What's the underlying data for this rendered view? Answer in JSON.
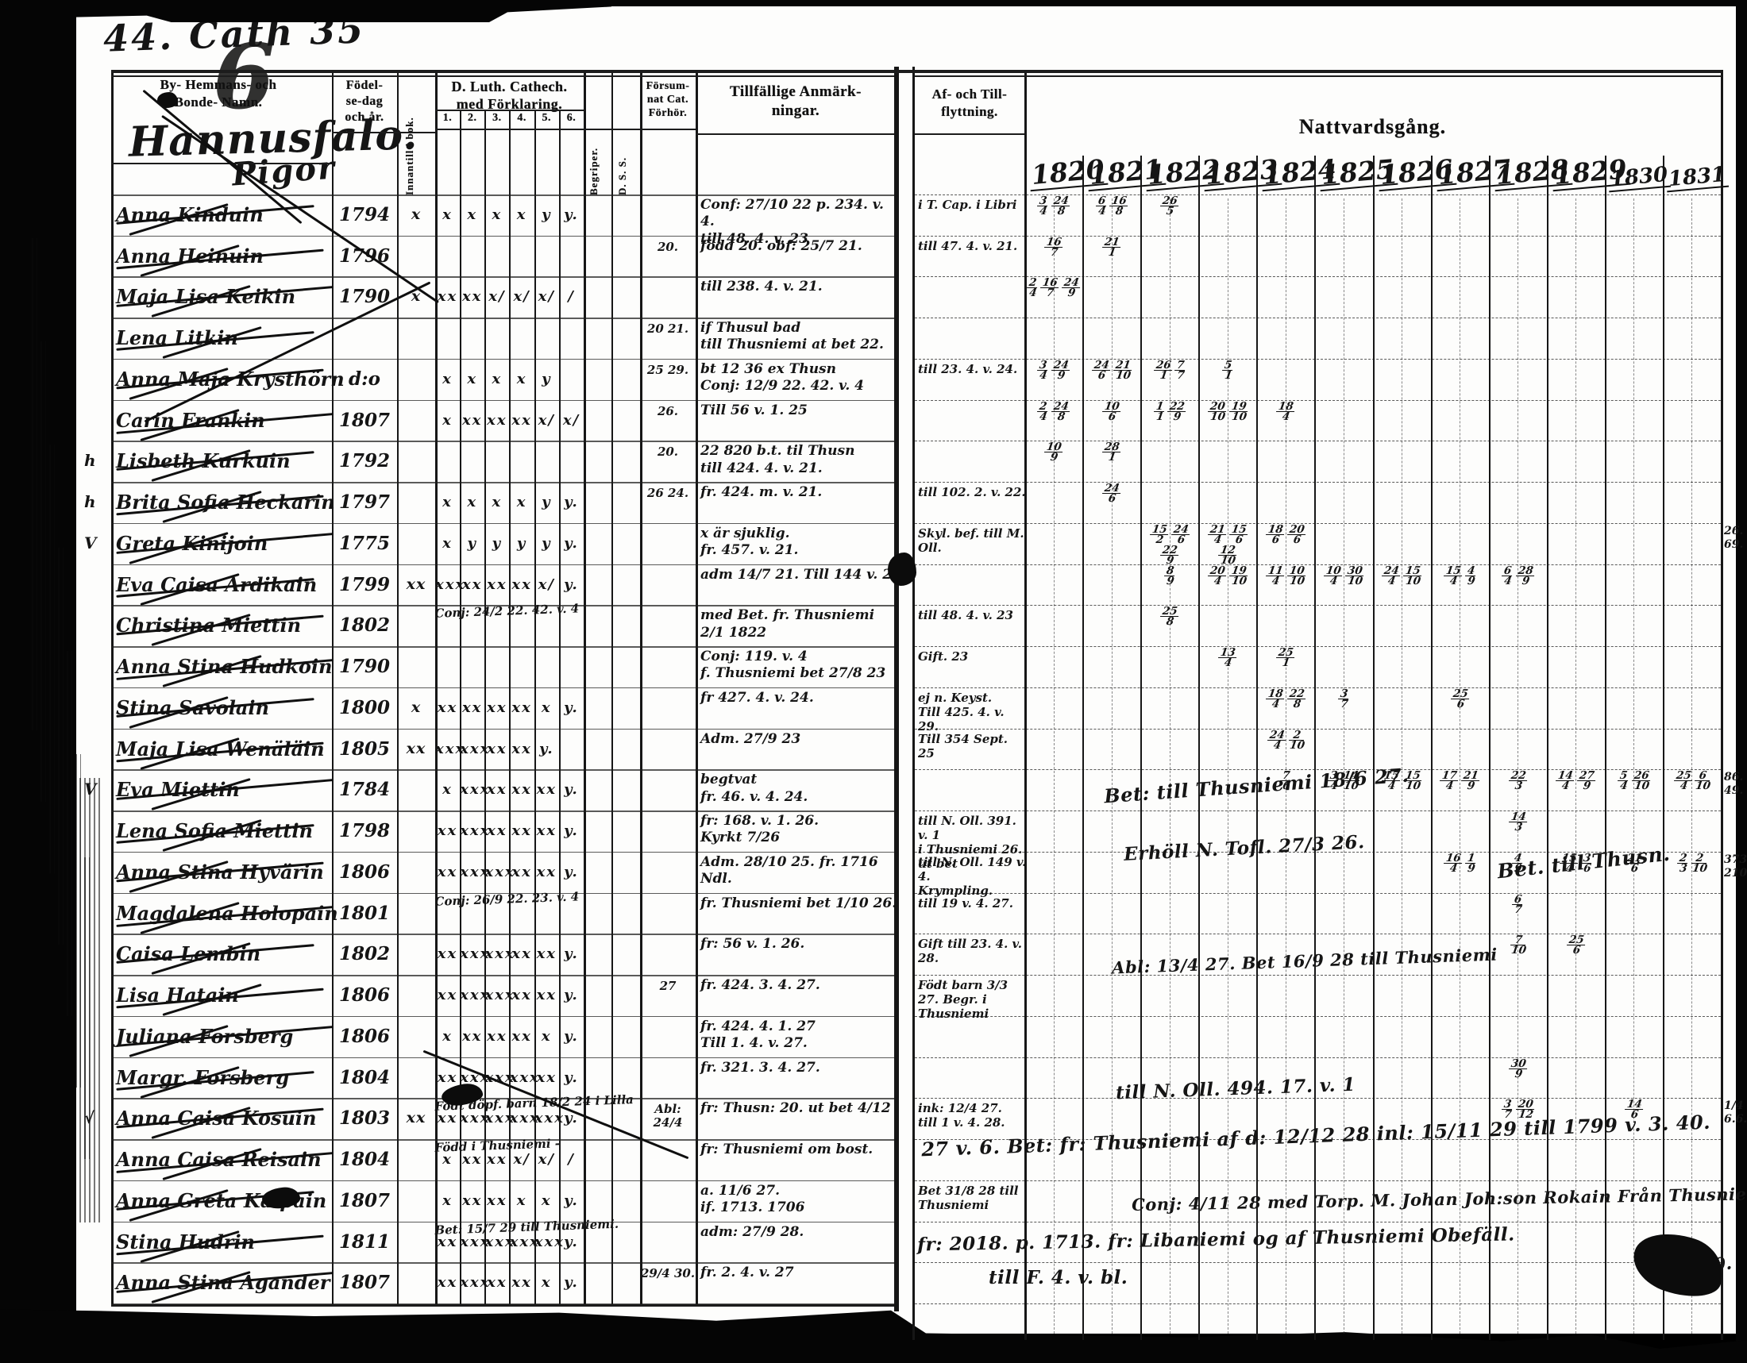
{
  "scan": {
    "page_label": "44. Cath 35",
    "big_figure": "6",
    "place_name": "Hannusfalo.",
    "group_heading": "Pigor",
    "bottom_right_note": "1810."
  },
  "headers": {
    "name_col": [
      "By- Hemmans- och",
      "Bonde- Namn."
    ],
    "birth_col": [
      "Födel-",
      "se-dag",
      "och år."
    ],
    "abc_col": "Innantill i bok.",
    "cat_col": [
      "D. Luth. Cathech.",
      "med Förklaring."
    ],
    "cat_subcols": [
      "1.",
      "2.",
      "3.",
      "4.",
      "5.",
      "6."
    ],
    "begriper_col": "Begriper.",
    "dss_col": "D. S. S.",
    "forsum_col": [
      "Försum-",
      "nat Cat.",
      "Förhör."
    ],
    "remarks_col": [
      "Tillfällige Anmärk-",
      "ningar."
    ],
    "move_col": [
      "Af- och Till-",
      "flyttning."
    ],
    "communion_col": "Nattvardsgång.",
    "years": [
      "1820",
      "1821",
      "1822",
      "1823",
      "1824",
      "1825",
      "1826",
      "1827",
      "1828",
      "1829",
      "1830",
      "1831"
    ]
  },
  "rows": [
    {
      "n": "Anna Kinduin",
      "b": "1794",
      "abc": "x",
      "cat": [
        "x",
        "x",
        "x",
        "x",
        "y",
        "y."
      ],
      "fors": "",
      "rem": [
        "Conf: 27/10 22 p. 234. v. 4.",
        "till 48. 4. v. 23"
      ],
      "mov": [
        "i T. Cap. i Libri"
      ],
      "mk": {
        "1820": "3/4 24/8",
        "1821": "6/4 16/8",
        "1822": "26/5"
      }
    },
    {
      "n": "Anna Heinuin",
      "b": "1796",
      "fors": "20.",
      "rem": [
        "född 20. obf: 25/7 21."
      ],
      "mov": [
        "till 47. 4. v. 21."
      ],
      "mk": {
        "1820": "16/7",
        "1821": "21/1"
      }
    },
    {
      "n": "Maja Lisa Keikin",
      "b": "1790",
      "abc": "x",
      "cat": [
        "xx",
        "xx",
        "x/",
        "x/",
        "x/",
        "/"
      ],
      "rem": [
        "till 238. 4. v. 21."
      ],
      "mk": {
        "1820": "2/4 16/7 24/9"
      }
    },
    {
      "n": "Lena Litkin",
      "b": "",
      "fors": "20 21.",
      "rem": [
        "if Thusul bad",
        "till Thusniemi at bet 22."
      ]
    },
    {
      "n": "Anna Maja Krysthörn",
      "b": "d:o",
      "fors": "25 29.",
      "cat": [
        "x",
        "x",
        "x",
        "x",
        "y",
        ""
      ],
      "rem": [
        "bt 12 36 ex Thusn",
        "Conj: 12/9 22. 42. v. 4"
      ],
      "mov": [
        "till 23. 4. v. 24."
      ],
      "mk": {
        "1820": "3/4 24/9",
        "1821": "24/6 21/10",
        "1822": "26/1 7/7",
        "1823": "5/1"
      }
    },
    {
      "n": "Carin Frankin",
      "b": "1807",
      "fors": "26.",
      "cat": [
        "x",
        "xx",
        "xx",
        "xx",
        "x/",
        "x/"
      ],
      "rem": [
        "Till 56 v. 1. 25"
      ],
      "mk": {
        "1820": "2/4 24/8",
        "1821": "10/6",
        "1822": "1/1 22/9",
        "1823": "20/10 19/10",
        "1824": "18/4"
      }
    },
    {
      "n": "Lisbeth Kurkuin",
      "b": "1792",
      "fors": "20.",
      "rem": [
        "22 820 b.t. til Thusn",
        "till 424. 4. v. 21."
      ],
      "mk": {
        "1820": "10/9",
        "1821": "28/1"
      },
      "mg": "h h"
    },
    {
      "n": "Brita Sofia Heckarin",
      "b": "1797",
      "fors": "26 24.",
      "cat": [
        "x",
        "x",
        "x",
        "x",
        "y",
        "y."
      ],
      "rem": [
        "fr. 424. m. v. 21."
      ],
      "mov": [
        "till 102. 2. v. 22."
      ],
      "mk": {
        "1821": "24/6"
      }
    },
    {
      "n": "Greta Kinijoin",
      "b": "1775",
      "cat": [
        "x",
        "y",
        "y",
        "y",
        "y",
        "y."
      ],
      "rem": [
        "x är sjuklig.",
        "fr. 457. v. 21."
      ],
      "mov": [
        "Skyl. bef. till M. Oll."
      ],
      "mk": {
        "1822": "15/2 24/6 22/9",
        "1823": "21/4 15/6 12/10",
        "1824": "18/6 20/6"
      },
      "mg": "V",
      "edge": "26. 69."
    },
    {
      "n": "Eva Caisa Ardikain",
      "b": "1799",
      "abc": "xx",
      "cat": [
        "xxx",
        "xx",
        "xx",
        "xx",
        "x/",
        "y."
      ],
      "rem": [
        "adm 14/7 21. Till 144 v. 2."
      ],
      "mk": {
        "1822": "8/9",
        "1823": "20/4 19/10",
        "1824": "11/4 10/10",
        "1825": "10/4 30/10",
        "1826": "24/4 15/10",
        "1827": "15/4 4/9",
        "1828": "6/4 28/9"
      }
    },
    {
      "n": "Christina Miettin",
      "b": "1802",
      "catnote": "Conj: 24/2 22. 42. v. 4",
      "rem": [
        "med Bet. fr. Thusniemi",
        "2/1 1822"
      ],
      "mov": [
        "till 48. 4. v. 23"
      ],
      "mk": {
        "1822": "25/8"
      }
    },
    {
      "n": "Anna Stina Hudkoin",
      "b": "1790",
      "rem": [
        "Conj: 119. v. 4",
        "f. Thusniemi bet 27/8 23"
      ],
      "mov": [
        "Gift. 23"
      ],
      "mk": {
        "1823": "13/4",
        "1824": "25/1"
      }
    },
    {
      "n": "Stina Savolain",
      "b": "1800",
      "abc": "x",
      "cat": [
        "xx",
        "xx",
        "xx",
        "xx",
        "x",
        "y."
      ],
      "rem": [
        "fr 427. 4. v. 24."
      ],
      "mov": [
        "ej n. Keyst.",
        "Till 425. 4. v. 29."
      ],
      "mk": {
        "1824": "18/4 22/8",
        "1825": "3/7",
        "1827": "25/6"
      }
    },
    {
      "n": "Maja Lisa Wenäläin",
      "b": "1805",
      "abc": "xx",
      "cat": [
        "xxx",
        "xxx",
        "xx",
        "xx",
        "y.",
        ""
      ],
      "rem": [
        "Adm. 27/9 23"
      ],
      "mov": [
        "Till 354 Sept. 25"
      ],
      "mk": {
        "1824": "24/4 2/10"
      }
    },
    {
      "n": "Eva Miettin",
      "b": "1784",
      "cat": [
        "x",
        "xxx",
        "xx",
        "xx",
        "xx",
        "y."
      ],
      "rem": [
        "begtvat",
        "fr. 46. v. 4. 24."
      ],
      "mk": {
        "1824": "7/6",
        "1825": "3/4 14/10",
        "1826": "15/4 15/10",
        "1827": "17/4 21/9",
        "1828": "22/3",
        "1829": "14/4 27/9",
        "1830": "5/4 26/10",
        "1831": "25/4 6/10"
      },
      "mg": "V",
      "edge": "86. 49."
    },
    {
      "n": "Lena Sofia Miettin",
      "b": "1798",
      "cat": [
        "xx",
        "xxx",
        "xx",
        "xx",
        "xx",
        "y."
      ],
      "rem": [
        "fr: 168. v. 1. 26.",
        "Kyrkt 7/26"
      ],
      "mov": [
        "till N. Oll. 391. v. 1",
        "i Thusniemi 26. ut bet"
      ],
      "mk": {
        "1828": "14/3"
      }
    },
    {
      "n": "Anna Stina Hyvärin",
      "b": "1806",
      "cat": [
        "xx",
        "xxx",
        "xxx",
        "xx",
        "xx",
        "y."
      ],
      "rem": [
        "Adm. 28/10 25. fr. 1716 Ndl."
      ],
      "mov": [
        "till N. Oll. 149 v. 4.",
        "Krympling."
      ],
      "mk": {
        "1827": "16/4 1/9",
        "1828": "4/9",
        "1829": "15/4 3/6",
        "1830": "21/6",
        "1831": "2/3 2/10"
      },
      "edge": "373. 210."
    },
    {
      "n": "Magdalena Holopain",
      "b": "1801",
      "catnote": "Conj: 26/9 22. 23. v. 4",
      "rem": [
        "fr. Thusniemi bet 1/10 26."
      ],
      "mov": [
        "till 19 v. 4. 27."
      ],
      "mk": {
        "1828": "6/7"
      }
    },
    {
      "n": "Caisa Lembin",
      "b": "1802",
      "cat": [
        "xx",
        "xxx",
        "xxx",
        "xx",
        "xx",
        "y."
      ],
      "rem": [
        "fr: 56 v. 1. 26."
      ],
      "mov": [
        "Gift till 23. 4. v. 28."
      ],
      "mk": {
        "1828": "7/10",
        "1829": "25/6"
      }
    },
    {
      "n": "Lisa Hatain",
      "b": "1806",
      "fors": "27",
      "cat": [
        "xx",
        "xxx",
        "xxx",
        "xx",
        "xx",
        "y."
      ],
      "rem": [
        "fr. 424. 3. 4. 27."
      ],
      "mov": [
        "Födt barn 3/3 27. Begr. i Thusniemi"
      ]
    },
    {
      "n": "Juliana Forsberg",
      "b": "1806",
      "cat": [
        "x",
        "xx",
        "xx",
        "xx",
        "x",
        "y."
      ],
      "rem": [
        "fr. 424. 4. 1. 27",
        "Till 1. 4. v. 27."
      ]
    },
    {
      "n": "Margr. Forsberg",
      "b": "1804",
      "cat": [
        "xx",
        "xxx",
        "xxx",
        "xxx",
        "xx",
        "y."
      ],
      "rem": [
        "fr. 321. 3. 4. 27."
      ],
      "mk": {
        "1828": "30/9"
      }
    },
    {
      "n": "Anna Caisa Kosuin",
      "b": "1803",
      "catnote": "Födt döpf. barn 18/2 24 i Lilla",
      "fors": "Abl: 24/4",
      "abc": "xx",
      "cat": [
        "xx",
        "xxx",
        "xxx",
        "xxx",
        "xxx",
        "y."
      ],
      "rem": [
        "fr: Thusn: 20. ut bet 4/12"
      ],
      "mov": [
        "ink: 12/4 27.",
        "till 1 v. 4. 28."
      ],
      "mk": {
        "1828": "3/7 20/12",
        "1830": "14/6"
      },
      "mg": "√",
      "edge": "1/4 6.6."
    },
    {
      "n": "Anna Caisa Reisain",
      "b": "1804",
      "catnote": "Född i Thusniemi -",
      "cat": [
        "x",
        "xx",
        "xx",
        "x/",
        "x/",
        "/"
      ],
      "rem": [
        "fr: Thusniemi om bost."
      ]
    },
    {
      "n": "Anna Greta Kaipain",
      "b": "1807",
      "cat": [
        "x",
        "xx",
        "xx",
        "x",
        "x",
        "y."
      ],
      "rem": [
        "a. 11/6 27.",
        "if. 1713. 1706"
      ],
      "mov": [
        "Bet 31/8 28 till Thusniemi"
      ]
    },
    {
      "n": "Stina Hudrin",
      "b": "1811",
      "catnote": "Bet: 15/7 29 till Thusniemi.",
      "cat": [
        "xx",
        "xxx",
        "xxx",
        "xxx",
        "xxx",
        "y."
      ],
      "rem": [
        "adm: 27/9 28."
      ]
    },
    {
      "n": "Anna Stina Agander",
      "b": "1807",
      "fors": "29/4 30.",
      "cat": [
        "xx",
        "xxx",
        "xx",
        "xx",
        "x",
        "y."
      ],
      "rem": [
        "fr. 2. 4. v. 27"
      ]
    }
  ],
  "overlay_notes": [
    "Bet: till Thusniemi 18/6 27.",
    "Erhöll N. Tofl. 27/3 26.",
    "Bet. till Thusn.",
    "Abl: 13/4 27. Bet 16/9 28 till Thusniemi",
    "till N. Oll. 494. 17. v. 1",
    "27 v. 6. Bet: fr: Thusniemi af d: 12/12 28 inl: 15/11 29 till 1799 v. 3. 40.",
    "Conj: 4/11 28 med Torp. M. Johan Joh:son Rokain Från Thusniemi",
    "fr: 2018. p. 1713. fr: Libaniemi og af Thusniemi Obefäll.",
    "till F. 4. v. bl."
  ]
}
